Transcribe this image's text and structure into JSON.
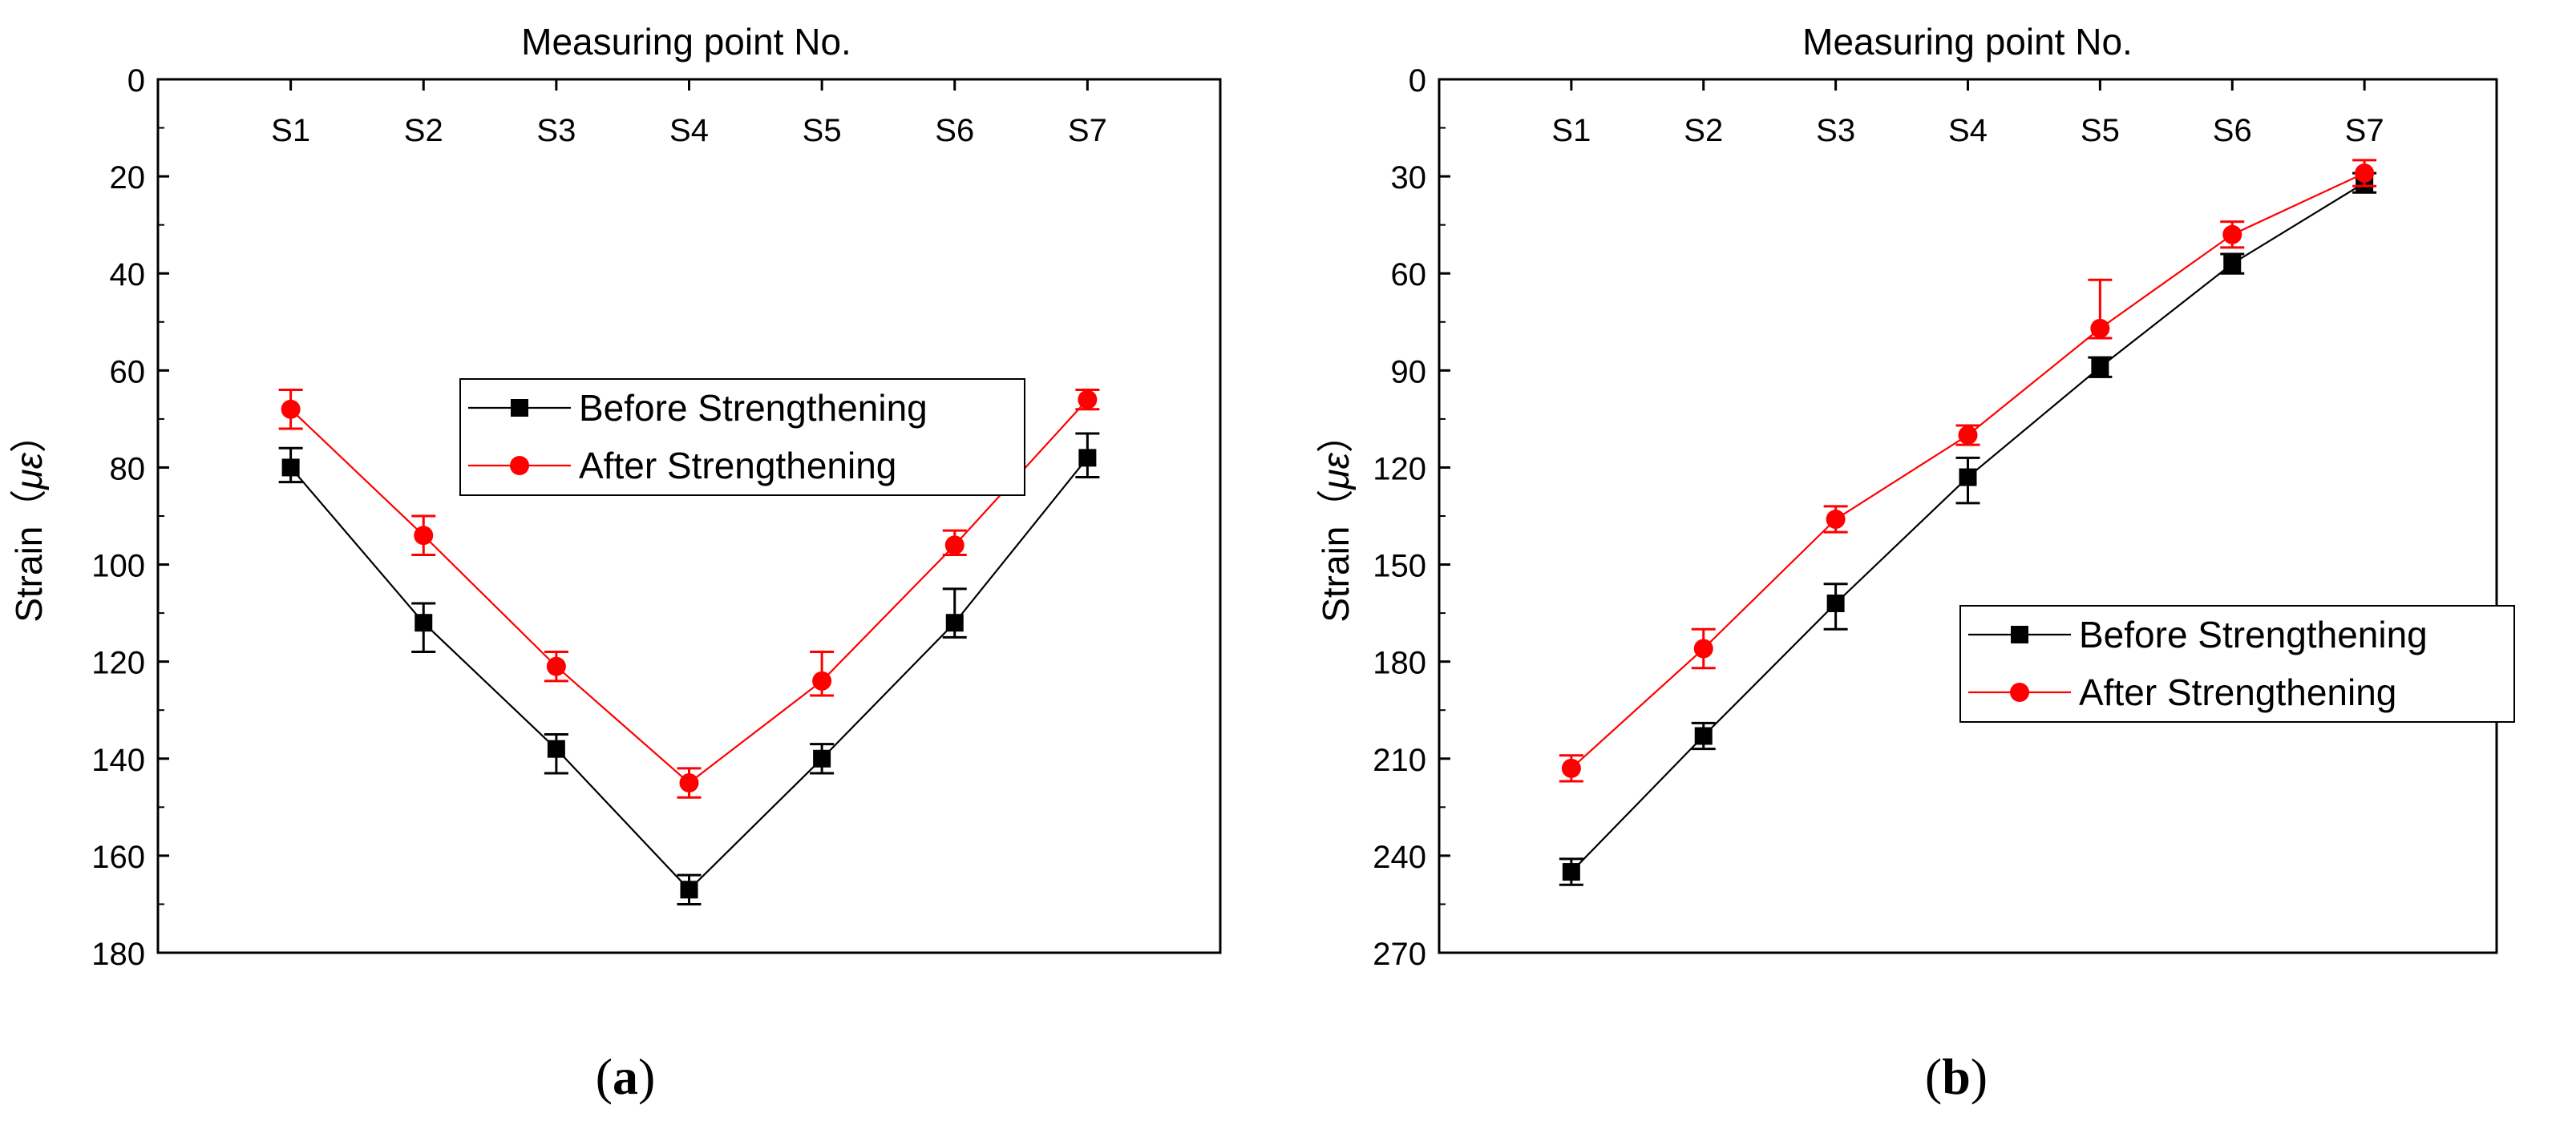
{
  "colors": {
    "before": "#000000",
    "after": "#ff0000",
    "axis": "#000000",
    "legend_border": "#000000"
  },
  "chart_data": [
    {
      "type": "line",
      "panel_label": "a",
      "title": "Measuring point No.",
      "xlabel": "Measuring point No.",
      "ylabel": "Strain（με）",
      "ylabel_text": "Strain（",
      "ylabel_unit": "με",
      "ylabel_close": "）",
      "categories": [
        "S1",
        "S2",
        "S3",
        "S4",
        "S5",
        "S6",
        "S7"
      ],
      "ylim": [
        0,
        180
      ],
      "y_inverted": true,
      "yticks": [
        0,
        20,
        40,
        60,
        80,
        100,
        120,
        140,
        160,
        180
      ],
      "x_axis_position": "top",
      "legend_position": "center",
      "series": [
        {
          "name": "Before Strengthening",
          "marker": "square",
          "values": [
            80,
            112,
            138,
            167,
            140,
            112,
            78
          ],
          "err_low": [
            4,
            4,
            3,
            3,
            3,
            7,
            5
          ],
          "err_high": [
            3,
            6,
            5,
            3,
            3,
            3,
            4
          ]
        },
        {
          "name": "After Strengthening",
          "marker": "circle",
          "values": [
            68,
            94,
            121,
            145,
            124,
            96,
            66
          ],
          "err_low": [
            4,
            4,
            3,
            3,
            6,
            3,
            2
          ],
          "err_high": [
            4,
            4,
            3,
            3,
            3,
            2,
            2
          ]
        }
      ]
    },
    {
      "type": "line",
      "panel_label": "b",
      "title": "Measuring point No.",
      "xlabel": "Measuring point No.",
      "ylabel": "Strain（με）",
      "ylabel_text": "Strain（",
      "ylabel_unit": "με",
      "ylabel_close": "）",
      "categories": [
        "S1",
        "S2",
        "S3",
        "S4",
        "S5",
        "S6",
        "S7"
      ],
      "ylim": [
        0,
        270
      ],
      "y_inverted": true,
      "yticks": [
        0,
        30,
        60,
        90,
        120,
        150,
        180,
        210,
        240,
        270
      ],
      "x_axis_position": "top",
      "legend_position": "right",
      "series": [
        {
          "name": "Before Strengthening",
          "marker": "square",
          "values": [
            245,
            203,
            162,
            123,
            89,
            57,
            32
          ],
          "err_low": [
            4,
            4,
            6,
            6,
            3,
            3,
            3
          ],
          "err_high": [
            4,
            4,
            8,
            8,
            3,
            3,
            3
          ]
        },
        {
          "name": "After Strengthening",
          "marker": "circle",
          "values": [
            213,
            176,
            136,
            110,
            77,
            48,
            29
          ],
          "err_low": [
            4,
            6,
            4,
            3,
            15,
            4,
            4
          ],
          "err_high": [
            4,
            6,
            4,
            3,
            3,
            4,
            4
          ]
        }
      ]
    }
  ]
}
